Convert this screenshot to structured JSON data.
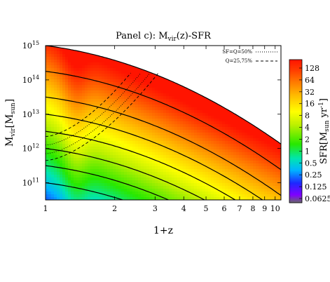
{
  "chart_data": {
    "type": "heatmap",
    "title_main": "Panel c): M",
    "title_sub": "vir",
    "title_tail": "(z)-SFR",
    "xlabel": "1+z",
    "x_scale": "log",
    "xlim": [
      1,
      10.6
    ],
    "ylabel_main": "M",
    "ylabel_sub1": "vir",
    "ylabel_mid": "[M",
    "ylabel_sub2": "sun",
    "ylabel_tail": "]",
    "y_scale": "log",
    "ylim": [
      10.5,
      15
    ],
    "x_ticks": [
      "1",
      "2",
      "3",
      "4",
      "5",
      "6",
      "7",
      "8",
      "9",
      "10"
    ],
    "x_tick_values": [
      1,
      2,
      3,
      4,
      5,
      6,
      7,
      8,
      9,
      10
    ],
    "y_ticks": [
      {
        "base": "10",
        "exp": "11",
        "value": 11
      },
      {
        "base": "10",
        "exp": "12",
        "value": 12
      },
      {
        "base": "10",
        "exp": "13",
        "value": 13
      },
      {
        "base": "10",
        "exp": "14",
        "value": 14
      },
      {
        "base": "10",
        "exp": "15",
        "value": 15
      }
    ],
    "colorbar": {
      "label_main": "SFR[M",
      "label_sub": "sun",
      "label_mid": " yr",
      "label_sup": "-1",
      "label_tail": "]",
      "ticks": [
        "128",
        "64",
        "32",
        "16",
        "8",
        "4",
        "2",
        "1",
        "0.5",
        "0.25",
        "0.125",
        "0.0625"
      ],
      "colors": [
        "#6a6a6a",
        "#8000ff",
        "#1f2bff",
        "#00b8ff",
        "#00e6b0",
        "#2ee800",
        "#c8f000",
        "#ffff00",
        "#ffc000",
        "#ff8a00",
        "#ff4a00",
        "#ff1a00"
      ]
    },
    "legend": {
      "position": "top-right",
      "entries": [
        {
          "label": "SF=Q=50%",
          "style": "dotted"
        },
        {
          "label": "Q=25,75%",
          "style": "dashed"
        }
      ]
    },
    "tracks_final_log_mass": [
      15,
      14.25,
      13.5,
      13.0,
      12.5,
      12.0,
      11.5,
      11.0
    ],
    "quench_50_start": [
      [
        1,
        12.1
      ],
      [
        1,
        11.85
      ]
    ],
    "quench_25_75_start": [
      [
        1,
        12.35
      ],
      [
        1,
        11.65
      ]
    ]
  }
}
